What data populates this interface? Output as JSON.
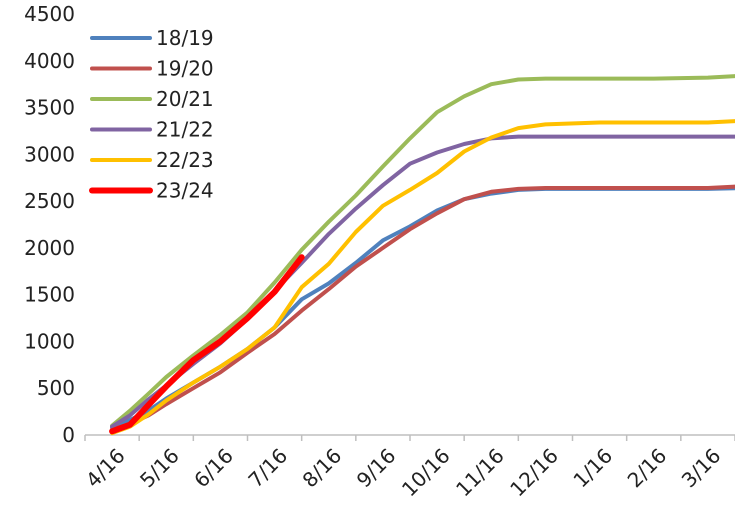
{
  "chart_data": {
    "type": "line",
    "title": "",
    "xlabel": "",
    "ylabel": "",
    "ylim": [
      0,
      4500
    ],
    "yticks": [
      0,
      500,
      1000,
      1500,
      2000,
      2500,
      3000,
      3500,
      4000,
      4500
    ],
    "grid": false,
    "legend_position": "top-left",
    "categories": [
      "4/16",
      "5/16",
      "6/16",
      "7/16",
      "8/16",
      "9/16",
      "10/16",
      "11/16",
      "12/16",
      "1/16",
      "2/16",
      "3/16"
    ],
    "series": [
      {
        "name": "18/19",
        "color": "#4F81BD",
        "x": [
          0,
          0.33,
          0.67,
          1,
          1.5,
          2,
          2.5,
          3,
          3.5,
          4,
          4.5,
          5,
          5.5,
          6,
          6.5,
          7,
          7.5,
          8,
          9,
          10,
          11,
          11.67
        ],
        "values": [
          80,
          160,
          260,
          390,
          560,
          730,
          920,
          1150,
          1450,
          1620,
          1840,
          2080,
          2230,
          2400,
          2520,
          2580,
          2620,
          2630,
          2630,
          2630,
          2630,
          2640
        ]
      },
      {
        "name": "19/20",
        "color": "#C0504D",
        "x": [
          0,
          0.33,
          0.67,
          1,
          1.5,
          2,
          2.5,
          3,
          3.5,
          4,
          4.5,
          5,
          5.5,
          6,
          6.5,
          7,
          7.5,
          8,
          9,
          10,
          11,
          11.67
        ],
        "values": [
          60,
          120,
          210,
          330,
          500,
          670,
          880,
          1080,
          1330,
          1560,
          1800,
          2000,
          2200,
          2370,
          2520,
          2600,
          2630,
          2640,
          2640,
          2640,
          2640,
          2660
        ]
      },
      {
        "name": "20/21",
        "color": "#9BBB59",
        "x": [
          0,
          0.33,
          0.67,
          1,
          1.5,
          2,
          2.5,
          3,
          3.5,
          4,
          4.5,
          5,
          5.5,
          6,
          6.5,
          7,
          7.5,
          8,
          9,
          10,
          11,
          11.67
        ],
        "values": [
          100,
          260,
          440,
          620,
          850,
          1070,
          1310,
          1630,
          1980,
          2280,
          2560,
          2870,
          3170,
          3450,
          3620,
          3750,
          3800,
          3810,
          3810,
          3810,
          3820,
          3840
        ]
      },
      {
        "name": "21/22",
        "color": "#8064A2",
        "x": [
          0,
          0.33,
          0.67,
          1,
          1.5,
          2,
          2.5,
          3,
          3.5,
          4,
          4.5,
          5,
          5.5,
          6,
          6.5,
          7,
          7.5,
          8,
          9,
          10,
          11,
          11.67
        ],
        "values": [
          90,
          210,
          380,
          530,
          760,
          980,
          1240,
          1540,
          1840,
          2150,
          2420,
          2670,
          2900,
          3020,
          3110,
          3170,
          3190,
          3190,
          3190,
          3190,
          3190,
          3190
        ]
      },
      {
        "name": "22/23",
        "color": "#FFC000",
        "x": [
          0,
          0.33,
          0.67,
          1,
          1.5,
          2,
          2.5,
          3,
          3.5,
          4,
          4.5,
          5,
          5.5,
          6,
          6.5,
          7,
          7.5,
          8,
          9,
          10,
          11,
          11.67
        ],
        "values": [
          20,
          90,
          220,
          370,
          560,
          730,
          920,
          1150,
          1580,
          1830,
          2170,
          2450,
          2620,
          2800,
          3030,
          3180,
          3280,
          3320,
          3340,
          3340,
          3340,
          3360
        ]
      },
      {
        "name": "23/24",
        "color": "#FF0000",
        "x": [
          0,
          0.33,
          0.67,
          1,
          1.5,
          2,
          2.5,
          3,
          3.5
        ],
        "values": [
          40,
          110,
          320,
          520,
          800,
          1000,
          1250,
          1530,
          1900
        ]
      }
    ]
  }
}
